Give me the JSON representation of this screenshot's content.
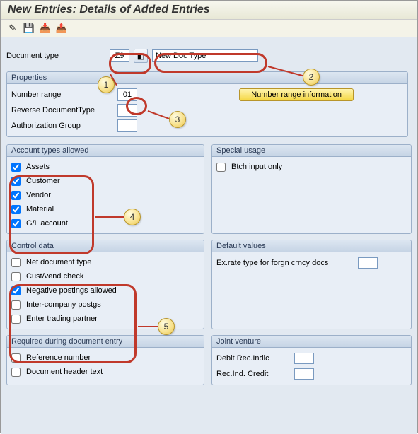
{
  "header": {
    "title": "New Entries: Details of Added Entries"
  },
  "toolbar": {
    "icons": [
      "✎",
      "💾",
      "📥",
      "📤"
    ],
    "names": [
      "edit-icon",
      "save-icon",
      "import-icon",
      "export-icon"
    ]
  },
  "doc": {
    "label": "Document type",
    "code": "Z9",
    "desc": "New Doc Type"
  },
  "properties": {
    "title": "Properties",
    "rows": [
      {
        "label": "Number range",
        "value": "01"
      },
      {
        "label": "Reverse DocumentType",
        "value": ""
      },
      {
        "label": "Authorization Group",
        "value": ""
      }
    ],
    "info_btn": "Number range information"
  },
  "account_types": {
    "title": "Account types allowed",
    "items": [
      {
        "label": "Assets",
        "checked": true
      },
      {
        "label": "Customer",
        "checked": true
      },
      {
        "label": "Vendor",
        "checked": true
      },
      {
        "label": "Material",
        "checked": true
      },
      {
        "label": "G/L account",
        "checked": true
      }
    ]
  },
  "special_usage": {
    "title": "Special usage",
    "items": [
      {
        "label": "Btch input only",
        "checked": false
      }
    ]
  },
  "control_data": {
    "title": "Control data",
    "items": [
      {
        "label": "Net document type",
        "checked": false
      },
      {
        "label": "Cust/vend check",
        "checked": false
      },
      {
        "label": "Negative postings allowed",
        "checked": true
      },
      {
        "label": "Inter-company postgs",
        "checked": false
      },
      {
        "label": "Enter trading partner",
        "checked": false
      }
    ]
  },
  "default_values": {
    "title": "Default values",
    "row_label": "Ex.rate type for forgn crncy docs"
  },
  "required_entry": {
    "title": "Required during document entry",
    "items": [
      {
        "label": "Reference number",
        "checked": false
      },
      {
        "label": "Document header text",
        "checked": false
      }
    ]
  },
  "joint_venture": {
    "title": "Joint venture",
    "rows": [
      {
        "label": "Debit Rec.Indic"
      },
      {
        "label": "Rec.Ind. Credit"
      }
    ]
  },
  "callouts": [
    "1",
    "2",
    "3",
    "4",
    "5"
  ],
  "style": {
    "ring_color": "#c0392b",
    "badge_bg": "#f7e08a"
  }
}
